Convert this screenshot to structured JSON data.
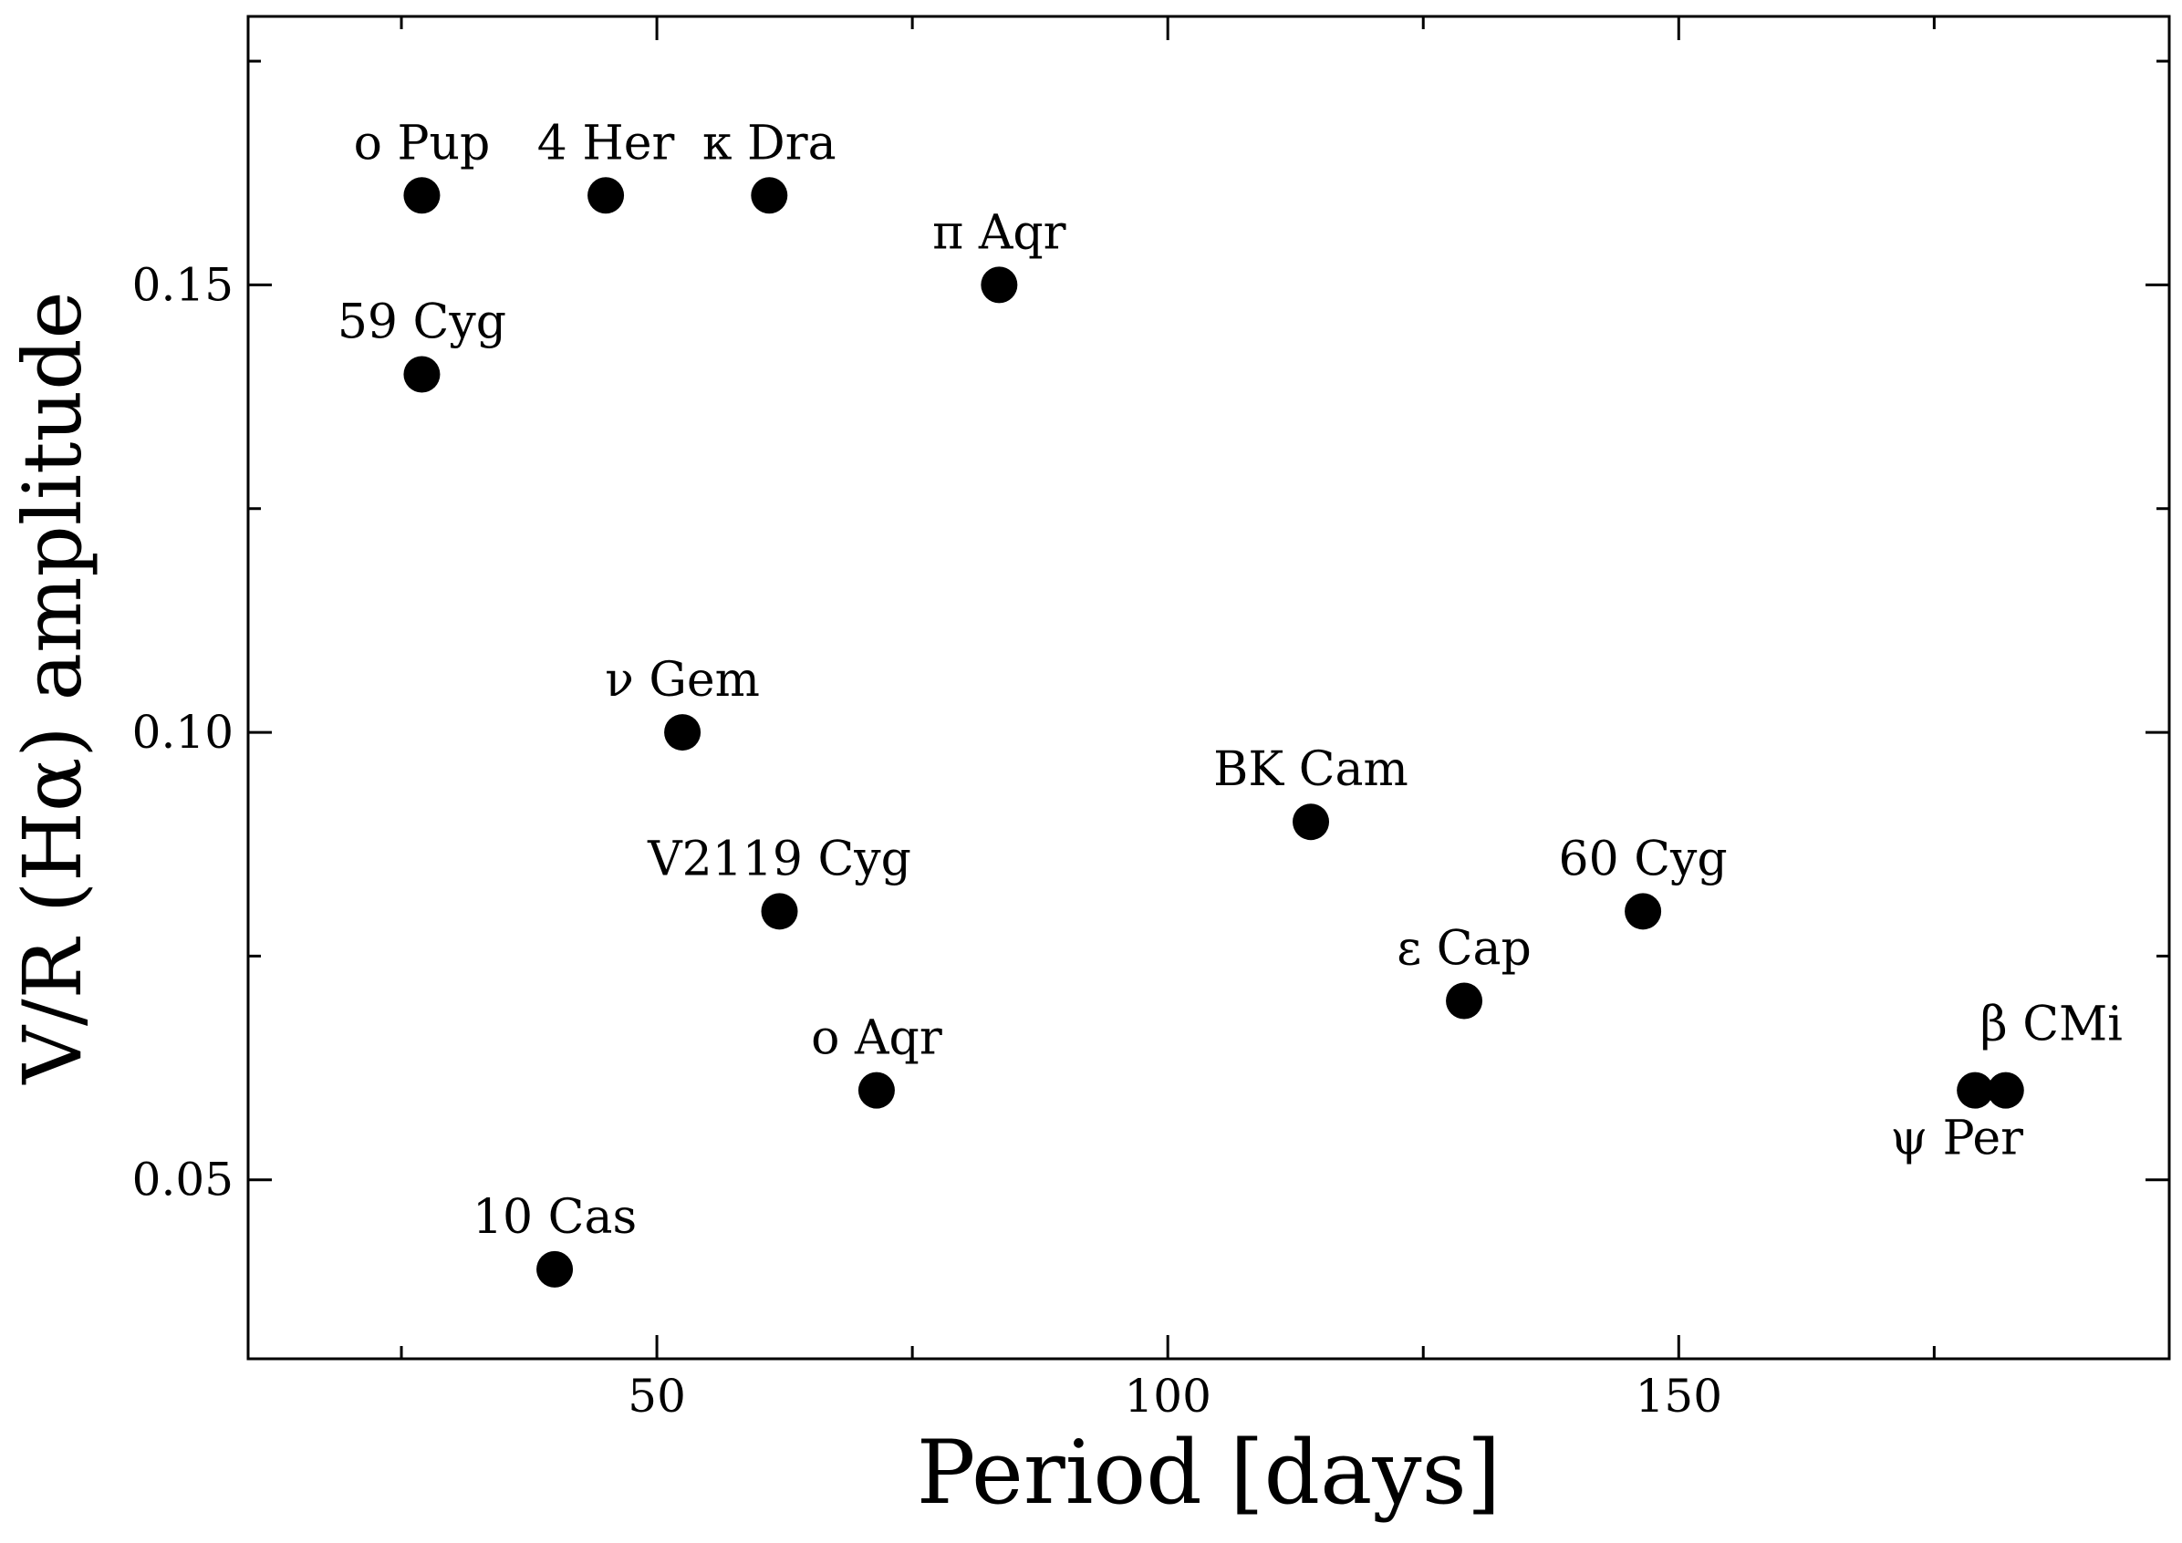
{
  "chart_data": {
    "type": "scatter",
    "title": "",
    "xlabel": "Period [days]",
    "ylabel": "V/R (Hα) amplitude",
    "xlim": [
      10,
      198
    ],
    "ylim": [
      0.03,
      0.18
    ],
    "xticks": [
      50,
      100,
      150
    ],
    "xtick_labels": [
      "50",
      "100",
      "150"
    ],
    "yticks": [
      0.05,
      0.1,
      0.15
    ],
    "ytick_labels": [
      "0.05",
      "0.10",
      "0.15"
    ],
    "grid": false,
    "colors": {
      "marker": "#000000",
      "axis": "#000000",
      "background": "#ffffff"
    },
    "points": [
      {
        "name": "o Pup",
        "x": 27.0,
        "y": 0.16,
        "label_pos": "above"
      },
      {
        "name": "4 Her",
        "x": 45.0,
        "y": 0.16,
        "label_pos": "above"
      },
      {
        "name": "κ Dra",
        "x": 61.0,
        "y": 0.16,
        "label_pos": "above"
      },
      {
        "name": "π Aqr",
        "x": 83.5,
        "y": 0.15,
        "label_pos": "above"
      },
      {
        "name": "59 Cyg",
        "x": 27.0,
        "y": 0.14,
        "label_pos": "above"
      },
      {
        "name": "ν Gem",
        "x": 52.5,
        "y": 0.1,
        "label_pos": "above"
      },
      {
        "name": "V2119 Cyg",
        "x": 62.0,
        "y": 0.08,
        "label_pos": "above"
      },
      {
        "name": "o Aqr",
        "x": 71.5,
        "y": 0.06,
        "label_pos": "above"
      },
      {
        "name": "10 Cas",
        "x": 40.0,
        "y": 0.04,
        "label_pos": "above"
      },
      {
        "name": "BK Cam",
        "x": 114.0,
        "y": 0.09,
        "label_pos": "above"
      },
      {
        "name": "ε Cap",
        "x": 129.0,
        "y": 0.07,
        "label_pos": "above"
      },
      {
        "name": "60 Cyg",
        "x": 146.5,
        "y": 0.08,
        "label_pos": "above"
      },
      {
        "name": "ψ Per",
        "x": 179.0,
        "y": 0.06,
        "label_pos": "below-left"
      },
      {
        "name": "β CMi",
        "x": 182.0,
        "y": 0.06,
        "label_pos": "above-right"
      }
    ]
  }
}
